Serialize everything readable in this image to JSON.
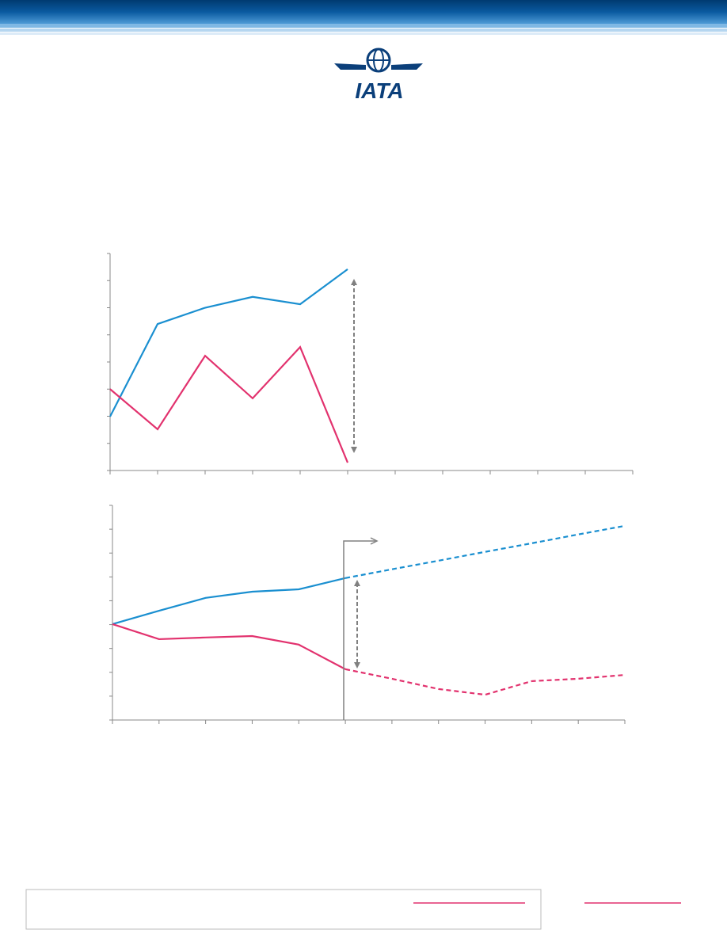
{
  "header": {
    "logo_text": "IATA"
  },
  "chart_data": [
    {
      "type": "line",
      "categories": [
        null,
        null,
        null,
        null,
        null,
        null,
        null,
        null,
        null,
        null,
        null,
        null
      ],
      "ylim": [
        0,
        8
      ],
      "yticks": [
        0,
        1,
        2,
        3,
        4,
        5,
        6,
        7,
        8
      ],
      "series": [
        {
          "color": "#1a8fd0",
          "values": [
            1.99,
            5.4,
            6.0,
            6.4,
            6.13,
            7.42,
            null,
            null,
            null,
            null,
            null,
            null
          ]
        },
        {
          "color": "#e2326e",
          "values": [
            3.0,
            1.52,
            4.23,
            2.66,
            4.55,
            0.29,
            null,
            null,
            null,
            null,
            null,
            null
          ]
        }
      ]
    },
    {
      "type": "line",
      "categories": [
        null,
        null,
        null,
        null,
        null,
        null,
        null,
        null,
        null,
        null,
        null,
        null
      ],
      "ylim": [
        0,
        9
      ],
      "yticks": [
        0,
        1,
        2,
        3,
        4,
        5,
        6,
        7,
        8,
        9
      ],
      "series": [
        {
          "color": "#1a8fd0",
          "values": [
            4.02,
            4.58,
            5.12,
            5.38,
            5.48,
            5.95,
            null,
            null,
            null,
            null,
            null,
            null
          ]
        },
        {
          "color": "#1a8fd0",
          "dashed": true,
          "values": [
            null,
            null,
            null,
            null,
            null,
            5.95,
            6.32,
            6.68,
            7.05,
            7.41,
            7.78,
            8.14
          ]
        },
        {
          "color": "#e2326e",
          "values": [
            4.02,
            3.39,
            3.46,
            3.52,
            3.16,
            2.13,
            null,
            null,
            null,
            null,
            null,
            null
          ]
        },
        {
          "color": "#e2326e",
          "dashed": true,
          "values": [
            null,
            null,
            null,
            null,
            null,
            2.13,
            1.73,
            1.3,
            1.06,
            1.63,
            1.73,
            1.89
          ]
        }
      ]
    }
  ]
}
